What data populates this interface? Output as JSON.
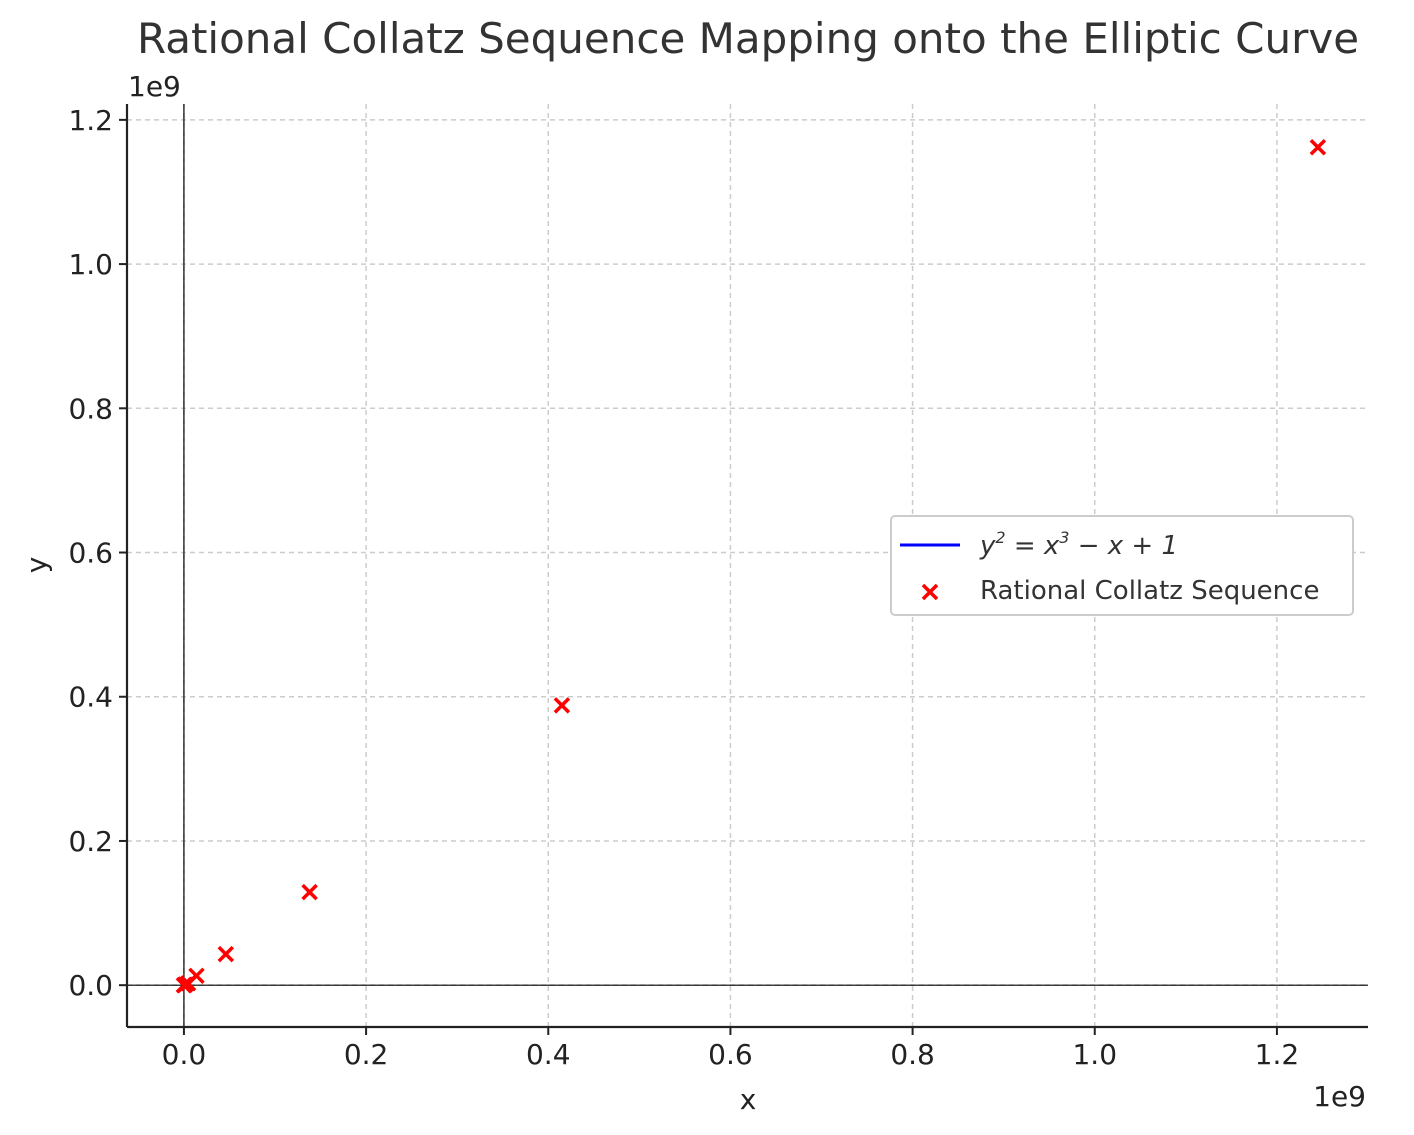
{
  "chart_data": {
    "type": "scatter",
    "title": "Rational Collatz Sequence Mapping onto the Elliptic Curve",
    "xlabel": "x",
    "ylabel": "y",
    "x_offset_label": "1e9",
    "y_offset_label": "1e9",
    "xlim": [
      -0.0625,
      1.3
    ],
    "ylim": [
      -0.058,
      1.222
    ],
    "xticks": [
      0.0,
      0.2,
      0.4,
      0.6,
      0.8,
      1.0,
      1.2
    ],
    "xtick_labels": [
      "0.0",
      "0.2",
      "0.4",
      "0.6",
      "0.8",
      "1.0",
      "1.2"
    ],
    "yticks": [
      0.0,
      0.2,
      0.4,
      0.6,
      0.8,
      1.0,
      1.2
    ],
    "ytick_labels": [
      "0.0",
      "0.2",
      "0.4",
      "0.6",
      "0.8",
      "1.0",
      "1.2"
    ],
    "grid": true,
    "legend_position": "center-right",
    "series": [
      {
        "name": "y^2 = x^3 - x + 1",
        "kind": "line",
        "color": "#0000ff",
        "x": [],
        "y": []
      },
      {
        "name": "Rational Collatz Sequence",
        "kind": "scatter",
        "marker": "x",
        "color": "#ff0000",
        "x": [
          0.0,
          0.0002,
          0.0005,
          0.0015,
          0.0046,
          0.0138,
          0.046,
          0.138,
          0.415,
          1.245
        ],
        "y": [
          0.0,
          0.0001,
          0.0003,
          0.0008,
          0.0026,
          0.013,
          0.043,
          0.129,
          0.388,
          1.162
        ]
      }
    ]
  }
}
